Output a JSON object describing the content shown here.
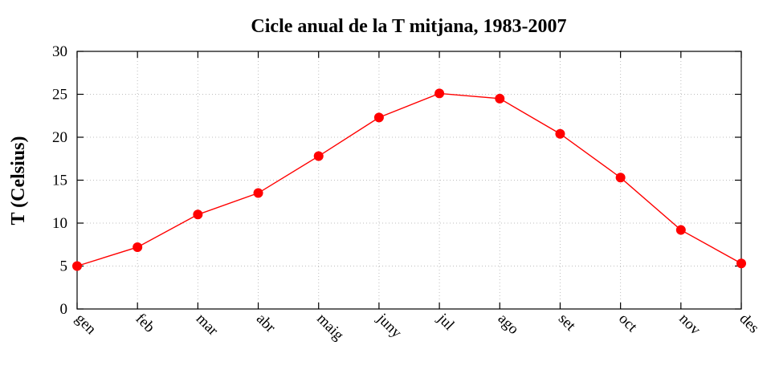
{
  "chart_data": {
    "type": "line",
    "title": "Cicle anual de la T mitjana, 1983-2007",
    "xlabel": "",
    "ylabel": "T (Celsius)",
    "categories": [
      "gen",
      "feb",
      "mar",
      "abr",
      "maig",
      "juny",
      "jul",
      "ago",
      "set",
      "oct",
      "nov",
      "des"
    ],
    "series": [
      {
        "values": [
          5.0,
          7.2,
          11.0,
          13.5,
          17.8,
          22.3,
          25.1,
          24.5,
          20.4,
          15.3,
          9.2,
          5.3
        ],
        "color": "#ff0000",
        "marker": "circle"
      }
    ],
    "ylim": [
      0,
      30
    ],
    "yticks": [
      0,
      5,
      10,
      15,
      20,
      25,
      30
    ],
    "grid": true,
    "legend": "none"
  }
}
